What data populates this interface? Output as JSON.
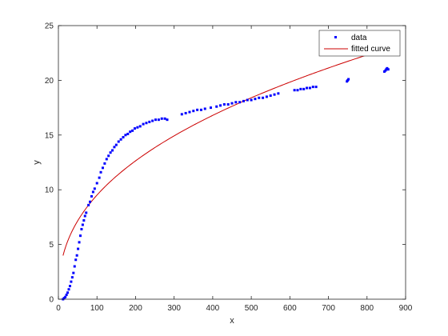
{
  "chart_data": {
    "type": "scatter",
    "xlabel": "x",
    "ylabel": "y",
    "xlim": [
      0,
      900
    ],
    "ylim": [
      0,
      25
    ],
    "xticks": [
      0,
      100,
      200,
      300,
      400,
      500,
      600,
      700,
      800,
      900
    ],
    "yticks": [
      0,
      5,
      10,
      15,
      20,
      25
    ],
    "grid": false,
    "legend_position": "top-right",
    "series": [
      {
        "name": "data",
        "kind": "points",
        "color": "#0000ff",
        "points": [
          [
            12,
            0.0
          ],
          [
            15,
            0.1
          ],
          [
            18,
            0.2
          ],
          [
            21,
            0.4
          ],
          [
            24,
            0.6
          ],
          [
            27,
            0.9
          ],
          [
            30,
            1.2
          ],
          [
            33,
            1.6
          ],
          [
            36,
            2.0
          ],
          [
            39,
            2.4
          ],
          [
            42,
            3.0
          ],
          [
            45,
            3.6
          ],
          [
            48,
            4.0
          ],
          [
            51,
            4.6
          ],
          [
            54,
            5.2
          ],
          [
            57,
            5.8
          ],
          [
            60,
            6.4
          ],
          [
            63,
            6.8
          ],
          [
            66,
            7.2
          ],
          [
            69,
            7.6
          ],
          [
            72,
            7.9
          ],
          [
            78,
            8.6
          ],
          [
            82,
            8.9
          ],
          [
            86,
            9.4
          ],
          [
            90,
            9.8
          ],
          [
            94,
            10.1
          ],
          [
            100,
            10.6
          ],
          [
            106,
            11.1
          ],
          [
            110,
            11.6
          ],
          [
            115,
            12.0
          ],
          [
            120,
            12.4
          ],
          [
            125,
            12.8
          ],
          [
            130,
            13.1
          ],
          [
            135,
            13.4
          ],
          [
            140,
            13.6
          ],
          [
            145,
            13.9
          ],
          [
            150,
            14.1
          ],
          [
            156,
            14.4
          ],
          [
            162,
            14.6
          ],
          [
            168,
            14.8
          ],
          [
            174,
            15.0
          ],
          [
            180,
            15.1
          ],
          [
            186,
            15.3
          ],
          [
            192,
            15.4
          ],
          [
            198,
            15.6
          ],
          [
            205,
            15.7
          ],
          [
            212,
            15.8
          ],
          [
            220,
            16.0
          ],
          [
            228,
            16.1
          ],
          [
            236,
            16.2
          ],
          [
            244,
            16.3
          ],
          [
            252,
            16.4
          ],
          [
            260,
            16.4
          ],
          [
            268,
            16.5
          ],
          [
            276,
            16.5
          ],
          [
            282,
            16.4
          ],
          [
            320,
            16.9
          ],
          [
            330,
            17.0
          ],
          [
            340,
            17.1
          ],
          [
            350,
            17.2
          ],
          [
            360,
            17.3
          ],
          [
            370,
            17.3
          ],
          [
            380,
            17.4
          ],
          [
            395,
            17.5
          ],
          [
            410,
            17.6
          ],
          [
            420,
            17.7
          ],
          [
            430,
            17.8
          ],
          [
            440,
            17.8
          ],
          [
            450,
            17.9
          ],
          [
            460,
            18.0
          ],
          [
            470,
            18.0
          ],
          [
            480,
            18.1
          ],
          [
            490,
            18.2
          ],
          [
            500,
            18.2
          ],
          [
            510,
            18.3
          ],
          [
            520,
            18.4
          ],
          [
            530,
            18.4
          ],
          [
            540,
            18.5
          ],
          [
            550,
            18.6
          ],
          [
            560,
            18.7
          ],
          [
            570,
            18.8
          ],
          [
            612,
            19.1
          ],
          [
            620,
            19.1
          ],
          [
            628,
            19.2
          ],
          [
            636,
            19.2
          ],
          [
            644,
            19.3
          ],
          [
            652,
            19.3
          ],
          [
            660,
            19.4
          ],
          [
            668,
            19.4
          ],
          [
            748,
            19.9
          ],
          [
            750,
            20.0
          ],
          [
            752,
            20.1
          ],
          [
            845,
            20.8
          ],
          [
            848,
            20.9
          ],
          [
            850,
            21.0
          ],
          [
            852,
            21.1
          ],
          [
            855,
            21.0
          ]
        ]
      },
      {
        "name": "fitted curve",
        "kind": "line",
        "color": "#cc0000",
        "model": {
          "a": 1.44,
          "b": 0.41
        },
        "x_range": [
          12,
          850
        ]
      }
    ]
  }
}
